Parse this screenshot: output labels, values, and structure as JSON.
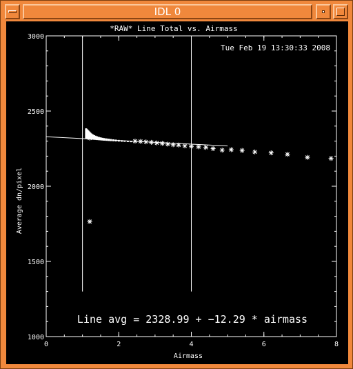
{
  "window": {
    "title": "IDL 0",
    "frame_color": "#f0883c",
    "menu_icon": "window-menu-icon",
    "minimize_icon": "minimize-icon",
    "maximize_icon": "maximize-icon"
  },
  "plot": {
    "timestamp": "Tue Feb 19 13:30:33 2008",
    "fit_label": "Line avg = 2328.99 + −12.29 * airmass"
  },
  "chart_data": {
    "type": "scatter",
    "title": "*RAW* Line Total vs. Airmass",
    "xlabel": "Airmass",
    "ylabel": "Average dn/pixel",
    "xlim": [
      0,
      8
    ],
    "ylim": [
      1000,
      3000
    ],
    "x_ticks": [
      "0",
      "2",
      "4",
      "6",
      "8"
    ],
    "y_ticks": [
      "1000",
      "1500",
      "2000",
      "2500",
      "3000"
    ],
    "background": "#000000",
    "foreground": "#ffffff",
    "vertical_lines_x": [
      1.0,
      4.0
    ],
    "vertical_lines_y_range": [
      1300,
      3000
    ],
    "fit_line": {
      "intercept": 2328.99,
      "slope": -12.29,
      "x_range": [
        0,
        5
      ]
    },
    "dense_cluster": {
      "x": [
        1.1,
        1.12,
        1.14,
        1.16,
        1.18,
        1.2,
        1.22,
        1.25,
        1.28,
        1.32,
        1.36,
        1.4,
        1.45,
        1.5,
        1.55,
        1.6,
        1.66,
        1.72,
        1.78,
        1.85,
        1.92,
        2.0,
        2.08,
        2.16,
        2.25,
        2.34
      ],
      "y_low": [
        2315,
        2314,
        2314,
        2313,
        2313,
        2312,
        2312,
        2311,
        2310,
        2309,
        2308,
        2307,
        2306,
        2305,
        2304,
        2303,
        2302,
        2301,
        2300,
        2299,
        2298,
        2297,
        2296,
        2295,
        2294,
        2293
      ],
      "y_high": [
        2385,
        2380,
        2375,
        2370,
        2365,
        2360,
        2355,
        2350,
        2345,
        2340,
        2336,
        2332,
        2328,
        2325,
        2322,
        2320,
        2318,
        2316,
        2314,
        2312,
        2310,
        2308,
        2306,
        2304,
        2302,
        2300
      ]
    },
    "points": {
      "x": [
        1.2,
        2.45,
        2.6,
        2.75,
        2.9,
        3.05,
        3.2,
        3.35,
        3.5,
        3.65,
        3.82,
        4.0,
        4.2,
        4.4,
        4.6,
        4.85,
        5.1,
        5.4,
        5.75,
        6.2,
        6.65,
        7.2,
        7.85,
        1.2
      ],
      "y": [
        2320,
        2300,
        2298,
        2295,
        2292,
        2288,
        2285,
        2280,
        2276,
        2274,
        2268,
        2265,
        2262,
        2258,
        2250,
        2240,
        2243,
        2238,
        2228,
        2222,
        2212,
        2192,
        2185,
        1765
      ]
    }
  }
}
